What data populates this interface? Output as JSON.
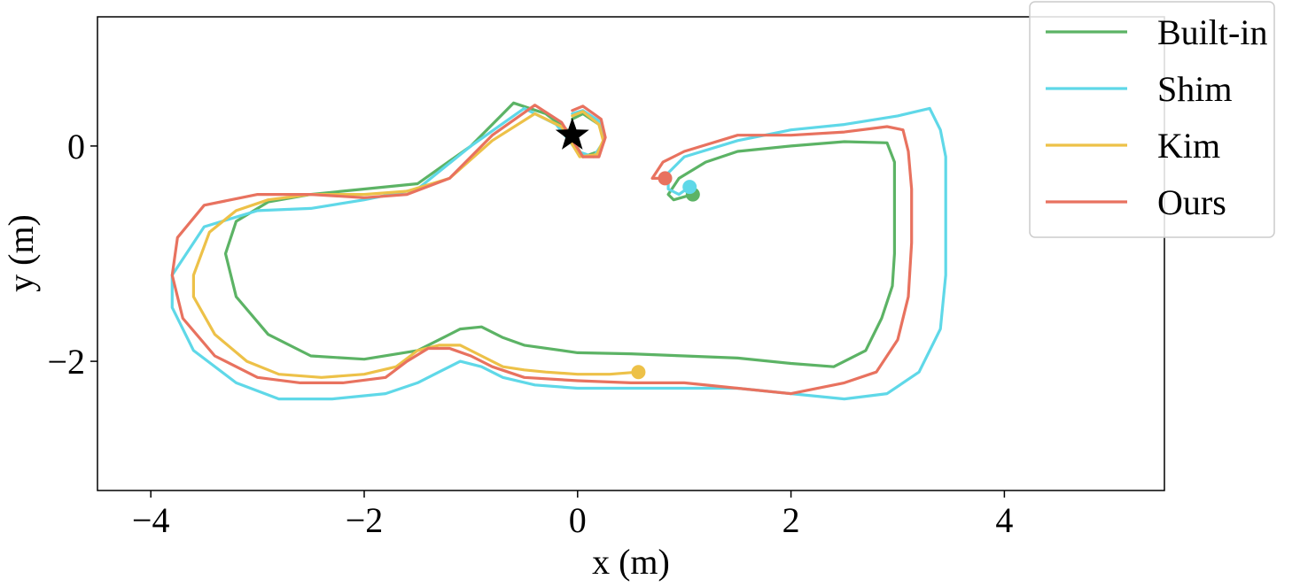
{
  "chart_data": {
    "type": "line",
    "title": "",
    "xlabel": "x (m)",
    "ylabel": "y (m)",
    "xlim": [
      -4.5,
      5.5
    ],
    "ylim": [
      -3.2,
      1.2
    ],
    "xticks": [
      -4,
      -2,
      0,
      2,
      4
    ],
    "xtick_labels": [
      "−4",
      "−2",
      "0",
      "2",
      "4"
    ],
    "yticks": [
      0,
      -2
    ],
    "ytick_labels": [
      "0",
      "−2"
    ],
    "grid": false,
    "legend_position": "top-right",
    "start_marker": {
      "symbol": "star",
      "x": -0.05,
      "y": 0.1,
      "color": "#000000"
    },
    "series": [
      {
        "name": "Built-in",
        "color": "#5cb365",
        "x": [
          -0.05,
          0.05,
          0.2,
          0.25,
          0.2,
          0.05,
          -0.1,
          -0.3,
          -0.6,
          -1.0,
          -1.5,
          -2.0,
          -2.5,
          -2.9,
          -3.2,
          -3.3,
          -3.2,
          -2.9,
          -2.5,
          -2.0,
          -1.5,
          -1.3,
          -1.1,
          -0.9,
          -0.7,
          -0.5,
          0.0,
          0.5,
          1.0,
          1.5,
          2.0,
          2.4,
          2.7,
          2.85,
          2.95,
          2.97,
          2.97,
          2.97,
          2.9,
          2.5,
          2.0,
          1.5,
          1.2,
          0.95,
          0.85,
          0.9,
          1.08
        ],
        "y": [
          0.25,
          0.3,
          0.2,
          0.05,
          -0.05,
          -0.1,
          0.15,
          0.3,
          0.4,
          0.0,
          -0.35,
          -0.4,
          -0.45,
          -0.52,
          -0.7,
          -1.0,
          -1.4,
          -1.75,
          -1.95,
          -1.98,
          -1.9,
          -1.8,
          -1.7,
          -1.68,
          -1.78,
          -1.85,
          -1.92,
          -1.93,
          -1.95,
          -1.97,
          -2.02,
          -2.05,
          -1.9,
          -1.6,
          -1.3,
          -1.0,
          -0.5,
          -0.15,
          0.03,
          0.04,
          0.0,
          -0.05,
          -0.15,
          -0.3,
          -0.45,
          -0.5,
          -0.45
        ]
      },
      {
        "name": "Shim",
        "color": "#5fd8e8",
        "x": [
          -0.05,
          0.05,
          0.22,
          0.25,
          0.15,
          0.0,
          -0.2,
          -0.5,
          -1.0,
          -1.5,
          -2.0,
          -2.5,
          -3.0,
          -3.5,
          -3.8,
          -3.8,
          -3.6,
          -3.2,
          -2.8,
          -2.3,
          -1.8,
          -1.5,
          -1.3,
          -1.1,
          -0.9,
          -0.7,
          -0.4,
          0.0,
          0.5,
          1.0,
          1.5,
          2.0,
          2.5,
          2.9,
          3.2,
          3.4,
          3.45,
          3.45,
          3.45,
          3.4,
          3.3,
          3.0,
          2.5,
          2.0,
          1.5,
          1.0,
          0.85,
          0.85,
          0.95,
          1.05
        ],
        "y": [
          0.3,
          0.33,
          0.22,
          0.05,
          -0.1,
          -0.05,
          0.2,
          0.35,
          0.0,
          -0.4,
          -0.5,
          -0.58,
          -0.6,
          -0.75,
          -1.2,
          -1.5,
          -1.9,
          -2.2,
          -2.35,
          -2.35,
          -2.3,
          -2.2,
          -2.1,
          -2.0,
          -2.05,
          -2.15,
          -2.22,
          -2.25,
          -2.25,
          -2.25,
          -2.25,
          -2.3,
          -2.35,
          -2.3,
          -2.1,
          -1.7,
          -1.2,
          -0.6,
          -0.1,
          0.15,
          0.35,
          0.28,
          0.2,
          0.15,
          0.05,
          -0.1,
          -0.25,
          -0.4,
          -0.45,
          -0.38
        ]
      },
      {
        "name": "Kim",
        "color": "#edc148",
        "x": [
          -0.05,
          0.05,
          0.2,
          0.24,
          0.18,
          0.02,
          -0.15,
          -0.4,
          -0.8,
          -1.2,
          -1.6,
          -2.0,
          -2.5,
          -2.9,
          -3.2,
          -3.45,
          -3.6,
          -3.6,
          -3.4,
          -3.1,
          -2.8,
          -2.4,
          -2.0,
          -1.7,
          -1.5,
          -1.3,
          -1.1,
          -0.9,
          -0.7,
          -0.5,
          -0.3,
          0.0,
          0.3,
          0.57
        ],
        "y": [
          0.28,
          0.32,
          0.2,
          0.05,
          -0.08,
          -0.1,
          0.18,
          0.3,
          0.05,
          -0.3,
          -0.42,
          -0.45,
          -0.45,
          -0.5,
          -0.6,
          -0.8,
          -1.2,
          -1.4,
          -1.75,
          -2.0,
          -2.12,
          -2.15,
          -2.12,
          -2.05,
          -1.9,
          -1.85,
          -1.85,
          -1.95,
          -2.05,
          -2.08,
          -2.1,
          -2.12,
          -2.12,
          -2.1
        ]
      },
      {
        "name": "Ours",
        "color": "#e8725f",
        "x": [
          -0.05,
          0.05,
          0.22,
          0.26,
          0.2,
          0.05,
          -0.15,
          -0.4,
          -0.8,
          -1.2,
          -1.6,
          -2.0,
          -2.5,
          -3.0,
          -3.5,
          -3.75,
          -3.8,
          -3.7,
          -3.4,
          -3.0,
          -2.6,
          -2.2,
          -1.8,
          -1.6,
          -1.4,
          -1.2,
          -1.0,
          -0.8,
          -0.5,
          0.0,
          0.5,
          1.0,
          1.5,
          2.0,
          2.5,
          2.8,
          3.0,
          3.1,
          3.13,
          3.13,
          3.1,
          3.05,
          2.9,
          2.5,
          2.0,
          1.5,
          1.0,
          0.8,
          0.7,
          0.82
        ],
        "y": [
          0.33,
          0.37,
          0.25,
          0.08,
          -0.1,
          -0.1,
          0.22,
          0.38,
          0.1,
          -0.3,
          -0.45,
          -0.48,
          -0.45,
          -0.45,
          -0.55,
          -0.85,
          -1.2,
          -1.6,
          -1.95,
          -2.15,
          -2.2,
          -2.2,
          -2.15,
          -2.0,
          -1.88,
          -1.88,
          -1.95,
          -2.05,
          -2.15,
          -2.18,
          -2.2,
          -2.2,
          -2.25,
          -2.3,
          -2.2,
          -2.1,
          -1.8,
          -1.4,
          -0.9,
          -0.4,
          -0.05,
          0.15,
          0.18,
          0.13,
          0.1,
          0.1,
          -0.05,
          -0.15,
          -0.3,
          -0.3
        ]
      }
    ]
  }
}
